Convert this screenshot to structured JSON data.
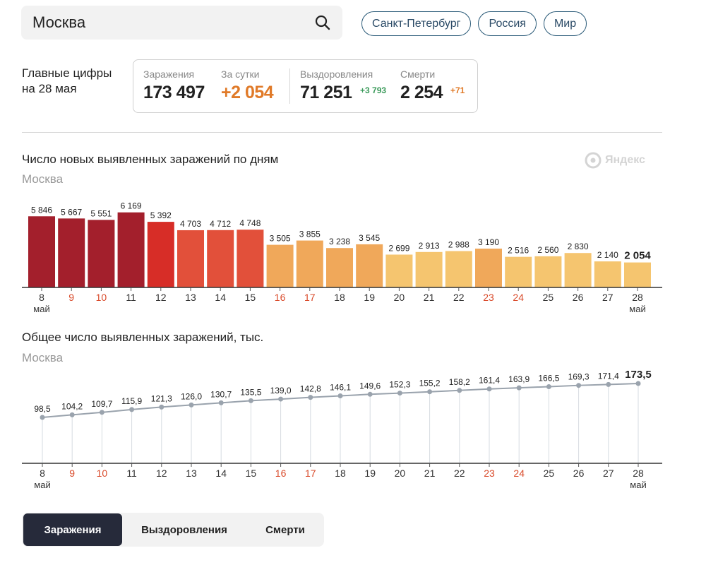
{
  "search": {
    "value": "Москва"
  },
  "regions": [
    "Санкт-Петербург",
    "Россия",
    "Мир"
  ],
  "summary": {
    "label_line1": "Главные цифры",
    "label_line2": "на 28 мая",
    "infections_label": "Заражения",
    "infections_value": "173 497",
    "daily_label": "За сутки",
    "daily_value": "+2 054",
    "recovered_label": "Выздоровления",
    "recovered_value": "71 251",
    "recovered_delta": "+3 793",
    "deaths_label": "Смерти",
    "deaths_value": "2 254",
    "deaths_delta": "+71"
  },
  "logo_text": "Яндекс",
  "colors": {
    "dark_red": "#a31f2c",
    "red": "#d72d27",
    "red_orange": "#e2503a",
    "orange": "#f0a85a",
    "light_orange": "#f5c56f",
    "weekend_red": "#d94a2a",
    "line_gray": "#9aa3ad",
    "active_tab": "#262a3a"
  },
  "chart_data": [
    {
      "type": "bar",
      "title": "Число новых выявленных заражений по дням",
      "subtitle": "Москва",
      "categories": [
        "8",
        "9",
        "10",
        "11",
        "12",
        "13",
        "14",
        "15",
        "16",
        "17",
        "18",
        "19",
        "20",
        "21",
        "22",
        "23",
        "24",
        "25",
        "26",
        "27",
        "28"
      ],
      "month_first": "май",
      "month_last": "май",
      "weekend_categories": [
        "9",
        "10",
        "16",
        "17",
        "23",
        "24"
      ],
      "values": [
        5846,
        5667,
        5551,
        6169,
        5392,
        4703,
        4712,
        4748,
        3505,
        3855,
        3238,
        3545,
        2699,
        2913,
        2988,
        3190,
        2516,
        2560,
        2830,
        2140,
        2054
      ],
      "labels": [
        "5 846",
        "5 667",
        "5 551",
        "6 169",
        "5 392",
        "4 703",
        "4 712",
        "4 748",
        "3 505",
        "3 855",
        "3 238",
        "3 545",
        "2 699",
        "2 913",
        "2 988",
        "3 190",
        "2 516",
        "2 560",
        "2 830",
        "2 140",
        "2 054"
      ],
      "ylim": [
        0,
        6500
      ]
    },
    {
      "type": "line",
      "title": "Общее число выявленных заражений, тыс.",
      "subtitle": "Москва",
      "categories": [
        "8",
        "9",
        "10",
        "11",
        "12",
        "13",
        "14",
        "15",
        "16",
        "17",
        "18",
        "19",
        "20",
        "21",
        "22",
        "23",
        "24",
        "25",
        "26",
        "27",
        "28"
      ],
      "month_first": "май",
      "month_last": "май",
      "weekend_categories": [
        "9",
        "10",
        "16",
        "17",
        "23",
        "24"
      ],
      "values": [
        98.5,
        104.2,
        109.7,
        115.9,
        121.3,
        126.0,
        130.7,
        135.5,
        139.0,
        142.8,
        146.1,
        149.6,
        152.3,
        155.2,
        158.2,
        161.4,
        163.9,
        166.5,
        169.3,
        171.4,
        173.5
      ],
      "labels": [
        "98,5",
        "104,2",
        "109,7",
        "115,9",
        "121,3",
        "126,0",
        "130,7",
        "135,5",
        "139,0",
        "142,8",
        "146,1",
        "149,6",
        "152,3",
        "155,2",
        "158,2",
        "161,4",
        "163,9",
        "166,5",
        "169,3",
        "171,4",
        "173,5"
      ],
      "ylim": [
        0,
        180
      ]
    }
  ],
  "tabs": [
    "Заражения",
    "Выздоровления",
    "Смерти"
  ]
}
